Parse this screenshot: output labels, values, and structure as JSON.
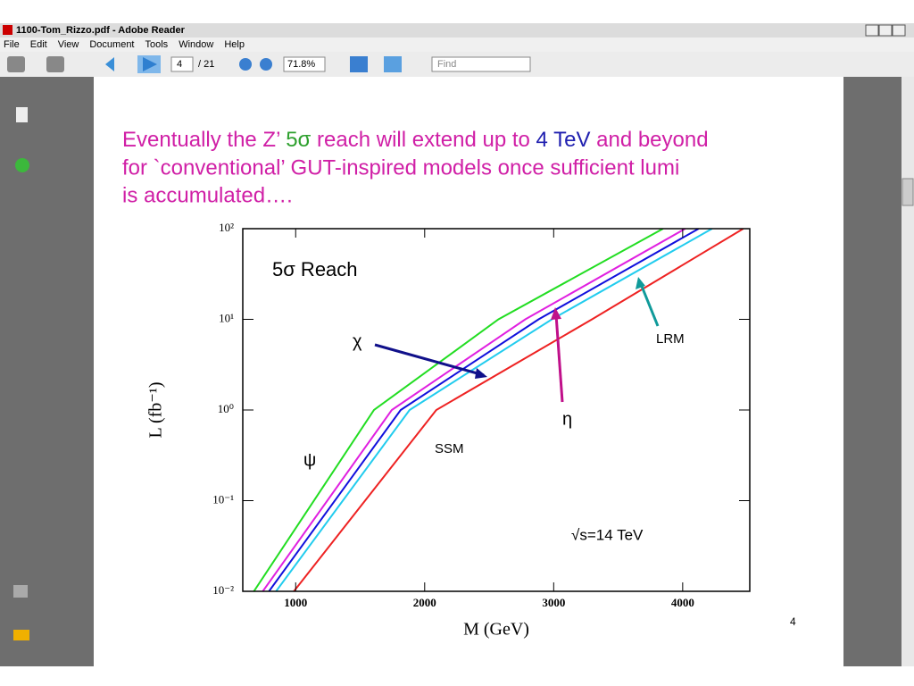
{
  "window": {
    "title": "1100-Tom_Rizzo.pdf - Adobe Reader",
    "menu": [
      "File",
      "Edit",
      "View",
      "Document",
      "Tools",
      "Window",
      "Help"
    ],
    "toolbar": {
      "page": "4",
      "page_count": "/ 21",
      "zoom": "71.8%",
      "find": "Find"
    }
  },
  "slide": {
    "title_parts": [
      {
        "text": "Eventually the Z’ ",
        "color": "#d01fa6"
      },
      {
        "text": "5σ",
        "color": "#2ea02e"
      },
      {
        "text": " reach will extend up to ",
        "color": "#d01fa6"
      },
      {
        "text": "4 TeV",
        "color": "#2020b0"
      },
      {
        "text": " and beyond",
        "color": "#d01fa6"
      }
    ],
    "title_line2": "for `conventional’ GUT-inspired models once sufficient lumi",
    "title_line3": "is accumulated….",
    "page_number": "4",
    "plot": {
      "xlabel": "M (GeV)",
      "ylabel": "L (fb⁻¹)",
      "xlim": [
        590,
        4520
      ],
      "ylim": [
        0.01,
        100
      ],
      "log_y": true,
      "xticks": [
        1000,
        2000,
        3000,
        4000
      ],
      "yticks": [
        {
          "value": 0.01,
          "label": "10⁻²"
        },
        {
          "value": 0.1,
          "label": "10⁻¹"
        },
        {
          "value": 1,
          "label": "10⁰"
        },
        {
          "value": 10,
          "label": "10¹"
        },
        {
          "value": 100,
          "label": "10²"
        }
      ],
      "series": [
        {
          "name": "ψ",
          "color": "#22dd22",
          "x": [
            676,
            1607,
            2572,
            3848
          ],
          "values": [
            0.01,
            1,
            10,
            100
          ]
        },
        {
          "name": "η",
          "color": "#e020e0",
          "x": [
            745,
            1745,
            2780,
            4020
          ],
          "values": [
            0.01,
            1,
            10,
            100
          ]
        },
        {
          "name": "χ",
          "color": "#1010dd",
          "x": [
            793,
            1814,
            2883,
            4124
          ],
          "values": [
            0.01,
            1,
            10,
            100
          ]
        },
        {
          "name": "LRM",
          "color": "#22ccee",
          "x": [
            848,
            1883,
            2986,
            4228
          ],
          "values": [
            0.01,
            1,
            10,
            100
          ]
        },
        {
          "name": "SSM",
          "color": "#ee2222",
          "x": [
            986,
            2090,
            3297,
            4470
          ],
          "values": [
            0.01,
            1,
            10,
            100
          ]
        }
      ],
      "annotations": {
        "reach": "5σ Reach",
        "energy": "√s=14 TeV"
      }
    }
  }
}
